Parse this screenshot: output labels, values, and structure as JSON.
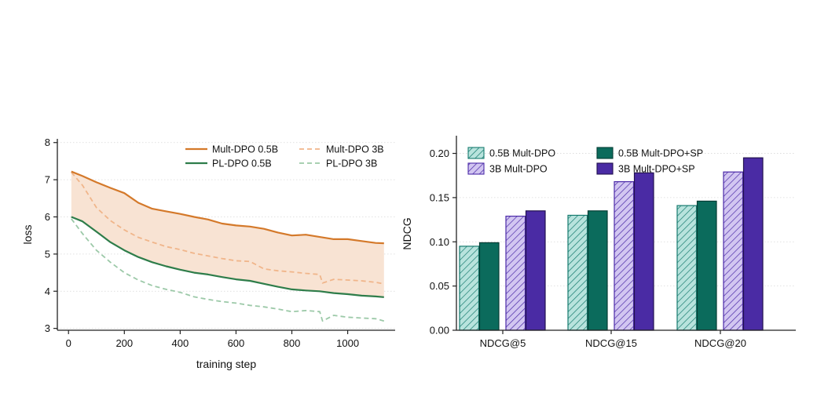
{
  "chart_data": [
    {
      "type": "line",
      "xlabel": "training step",
      "ylabel": "loss",
      "xlim": [
        -40,
        1170
      ],
      "ylim": [
        2.95,
        8.1
      ],
      "xticks": [
        0,
        200,
        400,
        600,
        800,
        1000
      ],
      "yticks": [
        3,
        4,
        5,
        6,
        7,
        8
      ],
      "grid": "horizontal dotted",
      "legend_position": "top-right",
      "shaded_band": {
        "between": [
          "Mult-DPO 0.5B",
          "PL-DPO 0.5B"
        ],
        "color": "#f8e3d3"
      },
      "series": [
        {
          "name": "Mult-DPO 0.5B",
          "color": "#d4792a",
          "style": "solid",
          "x": [
            10,
            50,
            100,
            150,
            200,
            250,
            300,
            350,
            400,
            450,
            500,
            550,
            600,
            650,
            700,
            750,
            800,
            850,
            900,
            950,
            1000,
            1050,
            1100,
            1130
          ],
          "y": [
            7.22,
            7.1,
            6.93,
            6.78,
            6.64,
            6.38,
            6.22,
            6.15,
            6.08,
            6.0,
            5.93,
            5.82,
            5.77,
            5.74,
            5.68,
            5.58,
            5.5,
            5.52,
            5.46,
            5.4,
            5.4,
            5.35,
            5.3,
            5.29
          ]
        },
        {
          "name": "Mult-DPO 3B",
          "color": "#f0b58a",
          "style": "dashed",
          "x": [
            10,
            50,
            100,
            150,
            200,
            250,
            300,
            350,
            400,
            450,
            500,
            550,
            600,
            650,
            700,
            750,
            800,
            850,
            900,
            910,
            950,
            1000,
            1050,
            1100,
            1130
          ],
          "y": [
            7.2,
            6.85,
            6.25,
            5.9,
            5.65,
            5.45,
            5.32,
            5.2,
            5.12,
            5.02,
            4.95,
            4.88,
            4.82,
            4.8,
            4.6,
            4.55,
            4.52,
            4.48,
            4.45,
            4.22,
            4.32,
            4.3,
            4.28,
            4.24,
            4.2
          ]
        },
        {
          "name": "PL-DPO 0.5B",
          "color": "#2e7d4a",
          "style": "solid",
          "x": [
            10,
            50,
            100,
            150,
            200,
            250,
            300,
            350,
            400,
            450,
            500,
            550,
            600,
            650,
            700,
            750,
            800,
            850,
            900,
            950,
            1000,
            1050,
            1100,
            1130
          ],
          "y": [
            6.0,
            5.88,
            5.6,
            5.32,
            5.1,
            4.92,
            4.78,
            4.67,
            4.58,
            4.5,
            4.45,
            4.38,
            4.32,
            4.28,
            4.2,
            4.12,
            4.05,
            4.02,
            4.0,
            3.95,
            3.92,
            3.88,
            3.86,
            3.84
          ]
        },
        {
          "name": "PL-DPO 3B",
          "color": "#9cc9a8",
          "style": "dashed",
          "x": [
            10,
            50,
            100,
            150,
            200,
            250,
            300,
            350,
            400,
            450,
            500,
            550,
            600,
            650,
            700,
            750,
            800,
            850,
            900,
            910,
            950,
            1000,
            1050,
            1100,
            1130
          ],
          "y": [
            5.95,
            5.55,
            5.1,
            4.78,
            4.5,
            4.3,
            4.15,
            4.05,
            3.97,
            3.85,
            3.78,
            3.72,
            3.68,
            3.62,
            3.58,
            3.52,
            3.45,
            3.48,
            3.45,
            3.2,
            3.35,
            3.3,
            3.28,
            3.26,
            3.2
          ]
        }
      ]
    },
    {
      "type": "bar",
      "categories": [
        "NDCG@5",
        "NDCG@15",
        "NDCG@20"
      ],
      "ylabel": "NDCG",
      "ylim": [
        0,
        0.22
      ],
      "yticks": [
        "0.00",
        "0.05",
        "0.10",
        "0.15",
        "0.20"
      ],
      "grid": "horizontal dotted",
      "legend_position": "top-left",
      "series": [
        {
          "name": "0.5B Mult-DPO",
          "values": [
            0.095,
            0.13,
            0.141
          ],
          "color": "#b8e3dd",
          "edge": "#157a6e",
          "hatch": true
        },
        {
          "name": "0.5B Mult-DPO+SP",
          "values": [
            0.099,
            0.135,
            0.146
          ],
          "color": "#0b6b5c",
          "edge": "#053d34",
          "hatch": false
        },
        {
          "name": "3B Mult-DPO",
          "values": [
            0.129,
            0.168,
            0.179
          ],
          "color": "#d2c6f1",
          "edge": "#4b2aa8",
          "hatch": true
        },
        {
          "name": "3B Mult-DPO+SP",
          "values": [
            0.135,
            0.178,
            0.195
          ],
          "color": "#4a2ba4",
          "edge": "#22124f",
          "hatch": false
        }
      ]
    }
  ]
}
